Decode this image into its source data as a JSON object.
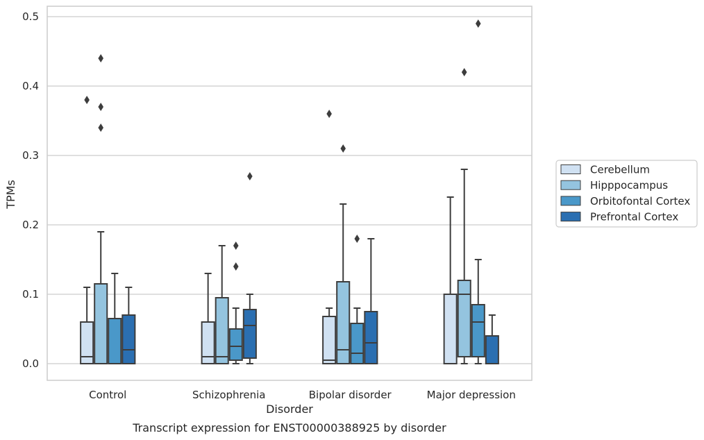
{
  "chart_data": {
    "type": "boxplot",
    "caption": "Transcript expression for ENST00000388925 by disorder",
    "xlabel": "Disorder",
    "ylabel": "TPMs",
    "ylim": [
      -0.023,
      0.515
    ],
    "yticks": [
      0.0,
      0.1,
      0.2,
      0.3,
      0.4,
      0.5
    ],
    "ytick_labels": [
      "0.0",
      "0.1",
      "0.2",
      "0.3",
      "0.4",
      "0.5"
    ],
    "grid": "horizontal",
    "legend_position": "right",
    "categories": [
      "Control",
      "Schizophrenia",
      "Bipolar disorder",
      "Major depression"
    ],
    "series": [
      {
        "name": "Cerebellum",
        "color": "#d0e1f2",
        "boxes": [
          {
            "min": 0.0,
            "q1": 0.0,
            "median": 0.01,
            "q3": 0.06,
            "max": 0.11,
            "outliers": [
              0.38
            ]
          },
          {
            "min": 0.0,
            "q1": 0.0,
            "median": 0.01,
            "q3": 0.06,
            "max": 0.13,
            "outliers": []
          },
          {
            "min": 0.0,
            "q1": 0.0,
            "median": 0.005,
            "q3": 0.068,
            "max": 0.08,
            "outliers": [
              0.36
            ]
          },
          {
            "min": 0.0,
            "q1": 0.0,
            "median": 0.0,
            "q3": 0.1,
            "max": 0.24,
            "outliers": []
          }
        ]
      },
      {
        "name": "Hipppocampus",
        "color": "#94c4df",
        "boxes": [
          {
            "min": 0.0,
            "q1": 0.0,
            "median": 0.0,
            "q3": 0.115,
            "max": 0.19,
            "outliers": [
              0.44,
              0.37,
              0.34
            ]
          },
          {
            "min": 0.0,
            "q1": 0.0,
            "median": 0.01,
            "q3": 0.095,
            "max": 0.17,
            "outliers": []
          },
          {
            "min": 0.0,
            "q1": 0.0,
            "median": 0.02,
            "q3": 0.118,
            "max": 0.23,
            "outliers": [
              0.31
            ]
          },
          {
            "min": 0.0,
            "q1": 0.01,
            "median": 0.1,
            "q3": 0.12,
            "max": 0.28,
            "outliers": [
              0.42
            ]
          }
        ]
      },
      {
        "name": "Orbitofontal Cortex",
        "color": "#4a98c9",
        "boxes": [
          {
            "min": 0.0,
            "q1": 0.0,
            "median": 0.0,
            "q3": 0.065,
            "max": 0.13,
            "outliers": []
          },
          {
            "min": 0.0,
            "q1": 0.005,
            "median": 0.025,
            "q3": 0.05,
            "max": 0.08,
            "outliers": [
              0.17,
              0.14
            ]
          },
          {
            "min": 0.0,
            "q1": 0.0,
            "median": 0.015,
            "q3": 0.058,
            "max": 0.08,
            "outliers": [
              0.18
            ]
          },
          {
            "min": 0.0,
            "q1": 0.01,
            "median": 0.06,
            "q3": 0.085,
            "max": 0.15,
            "outliers": [
              0.49
            ]
          }
        ]
      },
      {
        "name": "Prefrontal Cortex",
        "color": "#2b6fb1",
        "boxes": [
          {
            "min": 0.0,
            "q1": 0.0,
            "median": 0.02,
            "q3": 0.07,
            "max": 0.11,
            "outliers": []
          },
          {
            "min": 0.0,
            "q1": 0.008,
            "median": 0.055,
            "q3": 0.078,
            "max": 0.1,
            "outliers": [
              0.27
            ]
          },
          {
            "min": 0.0,
            "q1": 0.0,
            "median": 0.03,
            "q3": 0.075,
            "max": 0.18,
            "outliers": []
          },
          {
            "min": 0.0,
            "q1": 0.0,
            "median": 0.0,
            "q3": 0.04,
            "max": 0.07,
            "outliers": []
          }
        ]
      }
    ]
  }
}
